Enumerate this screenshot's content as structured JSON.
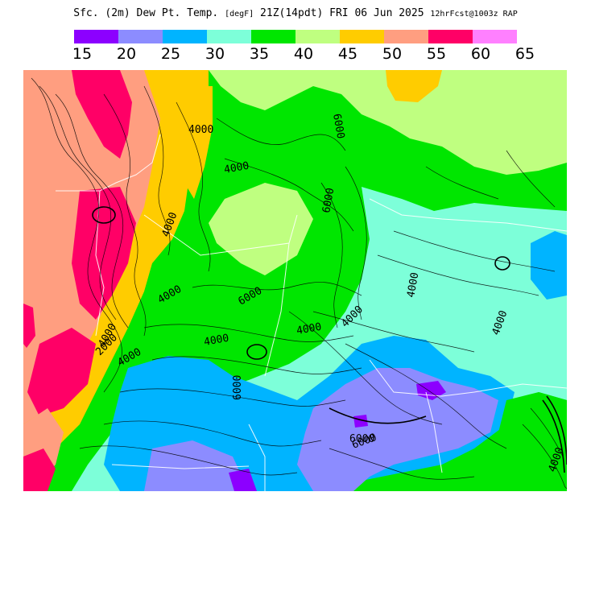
{
  "header": {
    "title_main": "Sfc. (2m) Dew Pt. Temp.",
    "units": "[degF]",
    "valid_time": "21Z(14pdt) FRI 06 Jun 2025",
    "forecast_info": "12hrFcst@1003z RAP"
  },
  "legend": {
    "colors": [
      "#8c00ff",
      "#8c8cff",
      "#00b4ff",
      "#7dffd9",
      "#00e600",
      "#bfff80",
      "#ffcc00",
      "#ff9e80",
      "#ff0066",
      "#ff80ff"
    ],
    "tick_labels": [
      "15",
      "20",
      "25",
      "30",
      "35",
      "40",
      "45",
      "50",
      "55",
      "60",
      "65"
    ]
  },
  "contour_labels": [
    "4000",
    "6000",
    "4000",
    "6000",
    "4000",
    "4000",
    "6000",
    "4000",
    "4000",
    "2000",
    "4000",
    "4000",
    "4000",
    "4000",
    "6000",
    "6000",
    "6000",
    "4000",
    "4000"
  ]
}
